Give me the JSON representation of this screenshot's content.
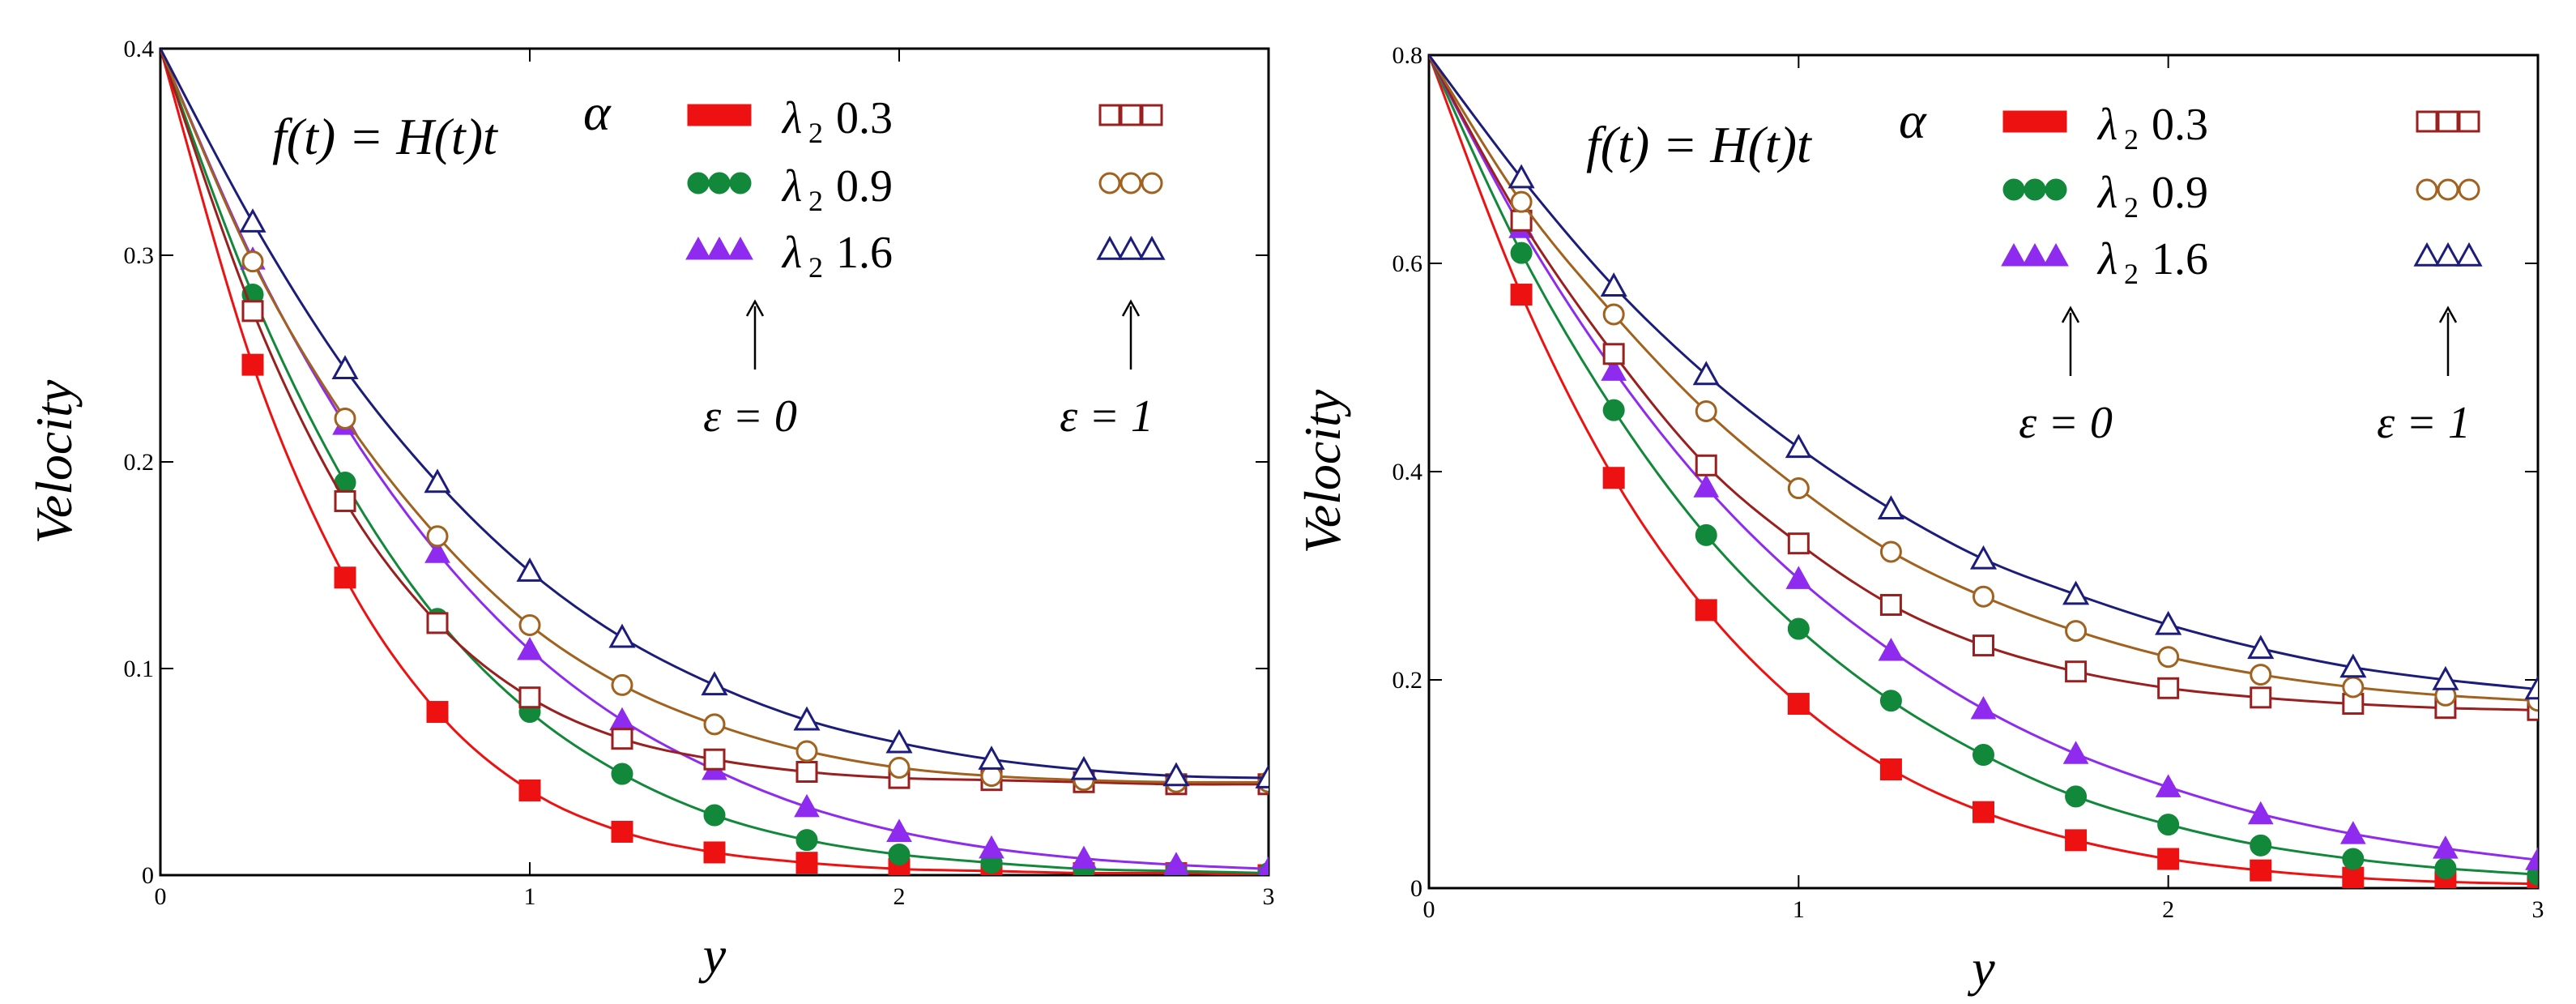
{
  "chart_data": [
    {
      "type": "line",
      "title": "",
      "formula": "f(t) = H(t)t^α",
      "formula_parts": {
        "lhs": "f(t) = H(t)t",
        "sup": "α"
      },
      "xlabel": "y",
      "ylabel": "Velocity",
      "xlim": [
        0,
        3
      ],
      "ylim": [
        0,
        0.4
      ],
      "xticks": [
        "0",
        "1",
        "2",
        "3"
      ],
      "yticks": [
        "0",
        "0.1",
        "0.2",
        "0.3",
        "0.4"
      ],
      "x": [
        0,
        0.25,
        0.5,
        0.75,
        1.0,
        1.25,
        1.5,
        1.75,
        2.0,
        2.25,
        2.5,
        2.75,
        3.0
      ],
      "legend_groups": {
        "left": "ε = 0",
        "right": "ε = 1"
      },
      "series": [
        {
          "name": "λ2 = 0.3, ε = 0",
          "lambda": "0.3",
          "marker": "square-filled",
          "color": "#ee1111",
          "values": [
            0.4,
            0.247,
            0.144,
            0.079,
            0.041,
            0.021,
            0.011,
            0.006,
            0.003,
            0.002,
            0.001,
            0.001,
            0.0
          ]
        },
        {
          "name": "λ2 = 0.9, ε = 0",
          "lambda": "0.9",
          "marker": "circle-filled",
          "color": "#11883a",
          "values": [
            0.4,
            0.281,
            0.19,
            0.124,
            0.079,
            0.049,
            0.029,
            0.017,
            0.01,
            0.006,
            0.003,
            0.002,
            0.001
          ]
        },
        {
          "name": "λ2 = 1.6, ε = 0",
          "lambda": "1.6",
          "marker": "triangle-filled",
          "color": "#8e2bef",
          "values": [
            0.4,
            0.298,
            0.218,
            0.156,
            0.109,
            0.075,
            0.051,
            0.033,
            0.021,
            0.013,
            0.008,
            0.005,
            0.003
          ]
        },
        {
          "name": "λ2 = 0.3, ε = 1",
          "lambda": "0.3",
          "marker": "square-open",
          "color": "#9a1f1f",
          "values": [
            0.4,
            0.273,
            0.181,
            0.122,
            0.086,
            0.066,
            0.056,
            0.05,
            0.047,
            0.046,
            0.045,
            0.044,
            0.044
          ]
        },
        {
          "name": "λ2 = 0.9, ε = 1",
          "lambda": "0.9",
          "marker": "circle-open",
          "color": "#a0621e",
          "values": [
            0.4,
            0.297,
            0.221,
            0.164,
            0.121,
            0.092,
            0.073,
            0.06,
            0.052,
            0.048,
            0.046,
            0.045,
            0.045
          ]
        },
        {
          "name": "λ2 = 1.6, ε = 1",
          "lambda": "1.6",
          "marker": "triangle-open",
          "color": "#1c1c7a",
          "values": [
            0.4,
            0.316,
            0.245,
            0.19,
            0.147,
            0.115,
            0.092,
            0.075,
            0.064,
            0.056,
            0.051,
            0.048,
            0.047
          ]
        }
      ]
    },
    {
      "type": "line",
      "title": "",
      "formula": "f(t) = H(t)t^α",
      "formula_parts": {
        "lhs": "f(t) = H(t)t",
        "sup": "α"
      },
      "xlabel": "y",
      "ylabel": "Velocity",
      "xlim": [
        0,
        3
      ],
      "ylim": [
        0,
        0.8
      ],
      "xticks": [
        "0",
        "1",
        "2",
        "3"
      ],
      "yticks": [
        "0",
        "0.2",
        "0.4",
        "0.6",
        "0.8"
      ],
      "x": [
        0,
        0.25,
        0.5,
        0.75,
        1.0,
        1.25,
        1.5,
        1.75,
        2.0,
        2.25,
        2.5,
        2.75,
        3.0
      ],
      "legend_groups": {
        "left": "ε = 0",
        "right": "ε = 1"
      },
      "series": [
        {
          "name": "λ2 = 0.3, ε = 0",
          "lambda": "0.3",
          "marker": "square-filled",
          "color": "#ee1111",
          "values": [
            0.8,
            0.57,
            0.394,
            0.267,
            0.177,
            0.114,
            0.073,
            0.046,
            0.028,
            0.017,
            0.01,
            0.006,
            0.004
          ]
        },
        {
          "name": "λ2 = 0.9, ε = 0",
          "lambda": "0.9",
          "marker": "circle-filled",
          "color": "#11883a",
          "values": [
            0.8,
            0.61,
            0.459,
            0.339,
            0.249,
            0.18,
            0.128,
            0.088,
            0.061,
            0.041,
            0.028,
            0.019,
            0.013
          ]
        },
        {
          "name": "λ2 = 1.6, ε = 0",
          "lambda": "1.6",
          "marker": "triangle-filled",
          "color": "#8e2bef",
          "values": [
            0.8,
            0.634,
            0.497,
            0.385,
            0.297,
            0.228,
            0.172,
            0.129,
            0.097,
            0.071,
            0.052,
            0.038,
            0.027
          ]
        },
        {
          "name": "λ2 = 0.3, ε = 1",
          "lambda": "0.3",
          "marker": "square-open",
          "color": "#9a1f1f",
          "values": [
            0.8,
            0.641,
            0.513,
            0.406,
            0.331,
            0.272,
            0.233,
            0.208,
            0.192,
            0.183,
            0.177,
            0.173,
            0.171
          ]
        },
        {
          "name": "λ2 = 0.9, ε = 1",
          "lambda": "0.9",
          "marker": "circle-open",
          "color": "#a0621e",
          "values": [
            0.8,
            0.659,
            0.551,
            0.458,
            0.384,
            0.323,
            0.28,
            0.247,
            0.222,
            0.205,
            0.193,
            0.185,
            0.18
          ]
        },
        {
          "name": "λ2 = 1.6, ε = 1",
          "lambda": "1.6",
          "marker": "triangle-open",
          "color": "#1c1c7a",
          "values": [
            0.8,
            0.682,
            0.578,
            0.493,
            0.423,
            0.364,
            0.316,
            0.282,
            0.253,
            0.23,
            0.212,
            0.2,
            0.191
          ]
        }
      ]
    }
  ]
}
